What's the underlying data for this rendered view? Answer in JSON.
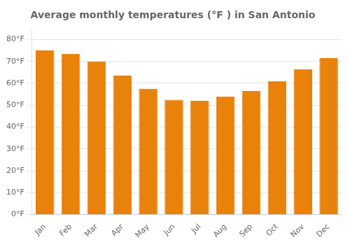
{
  "chart_data": {
    "type": "bar",
    "title": "Average monthly temperatures (°F ) in San Antonio",
    "categories": [
      "Jan",
      "Feb",
      "Mar",
      "Apr",
      "May",
      "Jun",
      "Jul",
      "Aug",
      "Sep",
      "Oct",
      "Nov",
      "Dec"
    ],
    "values": [
      75,
      73.5,
      70,
      63.5,
      57.5,
      52.5,
      52,
      54,
      56.5,
      61,
      66.5,
      71.5
    ],
    "color": "#E8820A",
    "ylim": [
      0,
      85
    ],
    "yticks": [
      {
        "value": 0,
        "label": "0°F"
      },
      {
        "value": 10,
        "label": "10°F"
      },
      {
        "value": 20,
        "label": "20°F"
      },
      {
        "value": 30,
        "label": "30°F"
      },
      {
        "value": 40,
        "label": "40°F"
      },
      {
        "value": 50,
        "label": "50°F"
      },
      {
        "value": 60,
        "label": "60°F"
      },
      {
        "value": 70,
        "label": "70°F"
      },
      {
        "value": 80,
        "label": "80°F"
      }
    ],
    "grid": true
  }
}
